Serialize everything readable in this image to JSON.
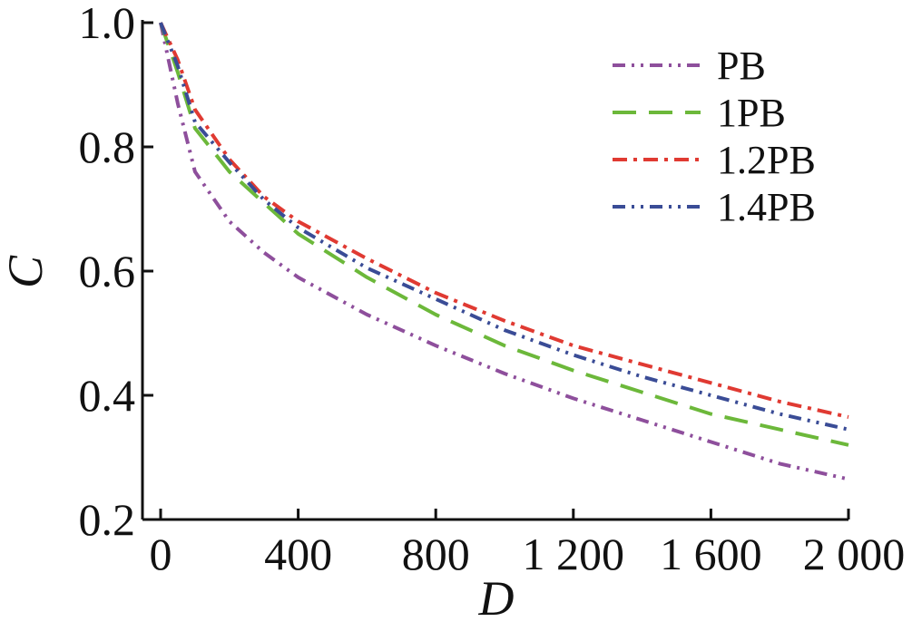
{
  "chart_data": {
    "type": "line",
    "xlabel": "D",
    "ylabel": "C",
    "xlim": [
      0,
      2000
    ],
    "ylim": [
      0.2,
      1.0
    ],
    "x_ticks": [
      0,
      400,
      800,
      1200,
      1600,
      2000
    ],
    "x_tick_labels": [
      "0",
      "400",
      "800",
      "1 200",
      "1 600",
      "2 000"
    ],
    "y_ticks": [
      0.2,
      0.4,
      0.6,
      0.8,
      1.0
    ],
    "y_tick_labels": [
      "0.2",
      "0.4",
      "0.6",
      "0.8",
      "1.0"
    ],
    "grid": false,
    "legend_position": "top-right",
    "series": [
      {
        "name": "PB",
        "color": "#8e4f9c",
        "dash": "dash-dot-dot",
        "x": [
          0,
          50,
          100,
          200,
          300,
          400,
          600,
          800,
          1000,
          1200,
          1400,
          1600,
          1800,
          2000
        ],
        "y": [
          1.0,
          0.87,
          0.76,
          0.68,
          0.63,
          0.59,
          0.53,
          0.48,
          0.435,
          0.395,
          0.36,
          0.325,
          0.29,
          0.265
        ]
      },
      {
        "name": "1PB",
        "color": "#6cb83a",
        "dash": "long-dash",
        "x": [
          0,
          50,
          100,
          200,
          300,
          400,
          600,
          800,
          1000,
          1200,
          1400,
          1600,
          1800,
          2000
        ],
        "y": [
          1.0,
          0.92,
          0.83,
          0.76,
          0.71,
          0.66,
          0.59,
          0.53,
          0.48,
          0.44,
          0.405,
          0.37,
          0.345,
          0.32
        ]
      },
      {
        "name": "1.2PB",
        "color": "#e03a32",
        "dash": "dash-dot",
        "x": [
          0,
          50,
          100,
          200,
          300,
          400,
          600,
          800,
          1000,
          1200,
          1400,
          1600,
          1800,
          2000
        ],
        "y": [
          1.0,
          0.94,
          0.86,
          0.78,
          0.72,
          0.68,
          0.62,
          0.565,
          0.52,
          0.48,
          0.45,
          0.42,
          0.39,
          0.365
        ]
      },
      {
        "name": "1.4PB",
        "color": "#3a4c96",
        "dash": "dash-dot-dot",
        "x": [
          0,
          50,
          100,
          200,
          300,
          400,
          600,
          800,
          1000,
          1200,
          1400,
          1600,
          1800,
          2000
        ],
        "y": [
          1.0,
          0.93,
          0.84,
          0.775,
          0.715,
          0.67,
          0.605,
          0.555,
          0.505,
          0.465,
          0.43,
          0.4,
          0.37,
          0.345
        ]
      }
    ]
  }
}
